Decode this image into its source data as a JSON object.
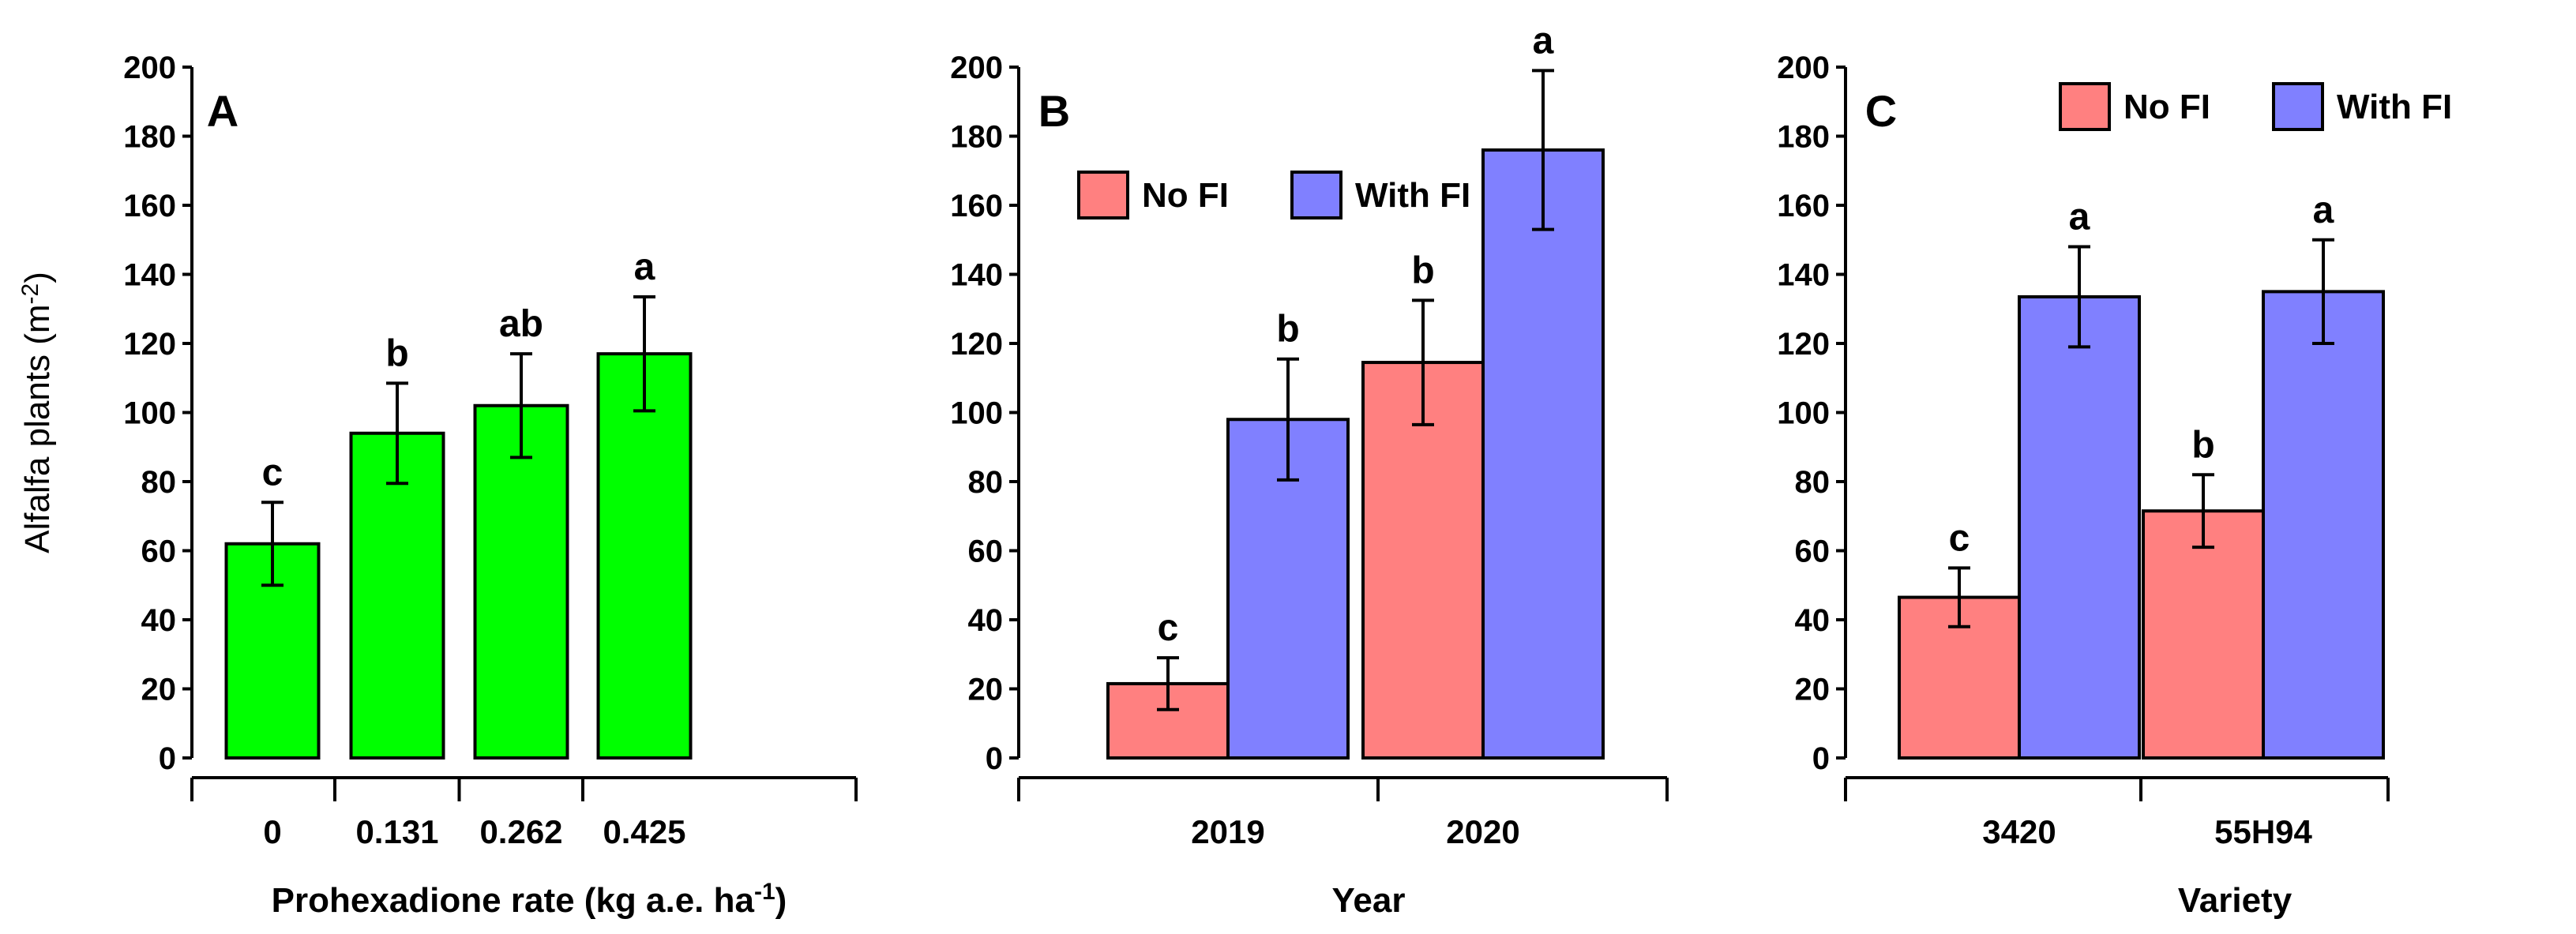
{
  "chart_data": [
    {
      "type": "bar",
      "panel": "A",
      "xlabel": "Prohexadione rate (kg a.e. ha",
      "xlabel_superscript": "-1",
      "xlabel_end": ")",
      "ylabel": "Alfalfa plants (m",
      "ylabel_superscript": "-2",
      "ylabel_end": ")",
      "ylim": [
        0,
        200
      ],
      "yticks": [
        "0",
        "20",
        "40",
        "60",
        "80",
        "100",
        "120",
        "140",
        "160",
        "180",
        "200"
      ],
      "categories": [
        "0",
        "0.131",
        "0.262",
        "0.425"
      ],
      "series": [
        {
          "name": "",
          "color": "#00ff00",
          "values": [
            62,
            94,
            102,
            117
          ],
          "errors": [
            12,
            14.5,
            15,
            16.5
          ],
          "letters": [
            "c",
            "b",
            "ab",
            "a"
          ]
        }
      ]
    },
    {
      "type": "bar",
      "panel": "B",
      "xlabel": "Year",
      "ylim": [
        0,
        200
      ],
      "yticks": [
        "0",
        "20",
        "40",
        "60",
        "80",
        "100",
        "120",
        "140",
        "160",
        "180",
        "200"
      ],
      "categories": [
        "2019",
        "2020"
      ],
      "legend": {
        "position": "top-left"
      },
      "series": [
        {
          "name": "No FI",
          "color": "#ff8080",
          "values": [
            21.5,
            114.5
          ],
          "errors": [
            7.5,
            18
          ],
          "letters": [
            "c",
            "b"
          ]
        },
        {
          "name": "With FI",
          "color": "#8080ff",
          "values": [
            98,
            176
          ],
          "errors": [
            17.5,
            23
          ],
          "letters": [
            "b",
            "a"
          ]
        }
      ]
    },
    {
      "type": "bar",
      "panel": "C",
      "xlabel": "Variety",
      "ylim": [
        0,
        200
      ],
      "yticks": [
        "0",
        "20",
        "40",
        "60",
        "80",
        "100",
        "120",
        "140",
        "160",
        "180",
        "200"
      ],
      "categories": [
        "3420",
        "55H94"
      ],
      "legend": {
        "position": "top-right"
      },
      "series": [
        {
          "name": "No FI",
          "color": "#ff8080",
          "values": [
            46.5,
            71.5
          ],
          "errors": [
            8.5,
            10.5
          ],
          "letters": [
            "c",
            "b"
          ]
        },
        {
          "name": "With FI",
          "color": "#8080ff",
          "values": [
            133.5,
            135
          ],
          "errors": [
            14.5,
            15
          ],
          "letters": [
            "a",
            "a"
          ]
        }
      ]
    }
  ]
}
